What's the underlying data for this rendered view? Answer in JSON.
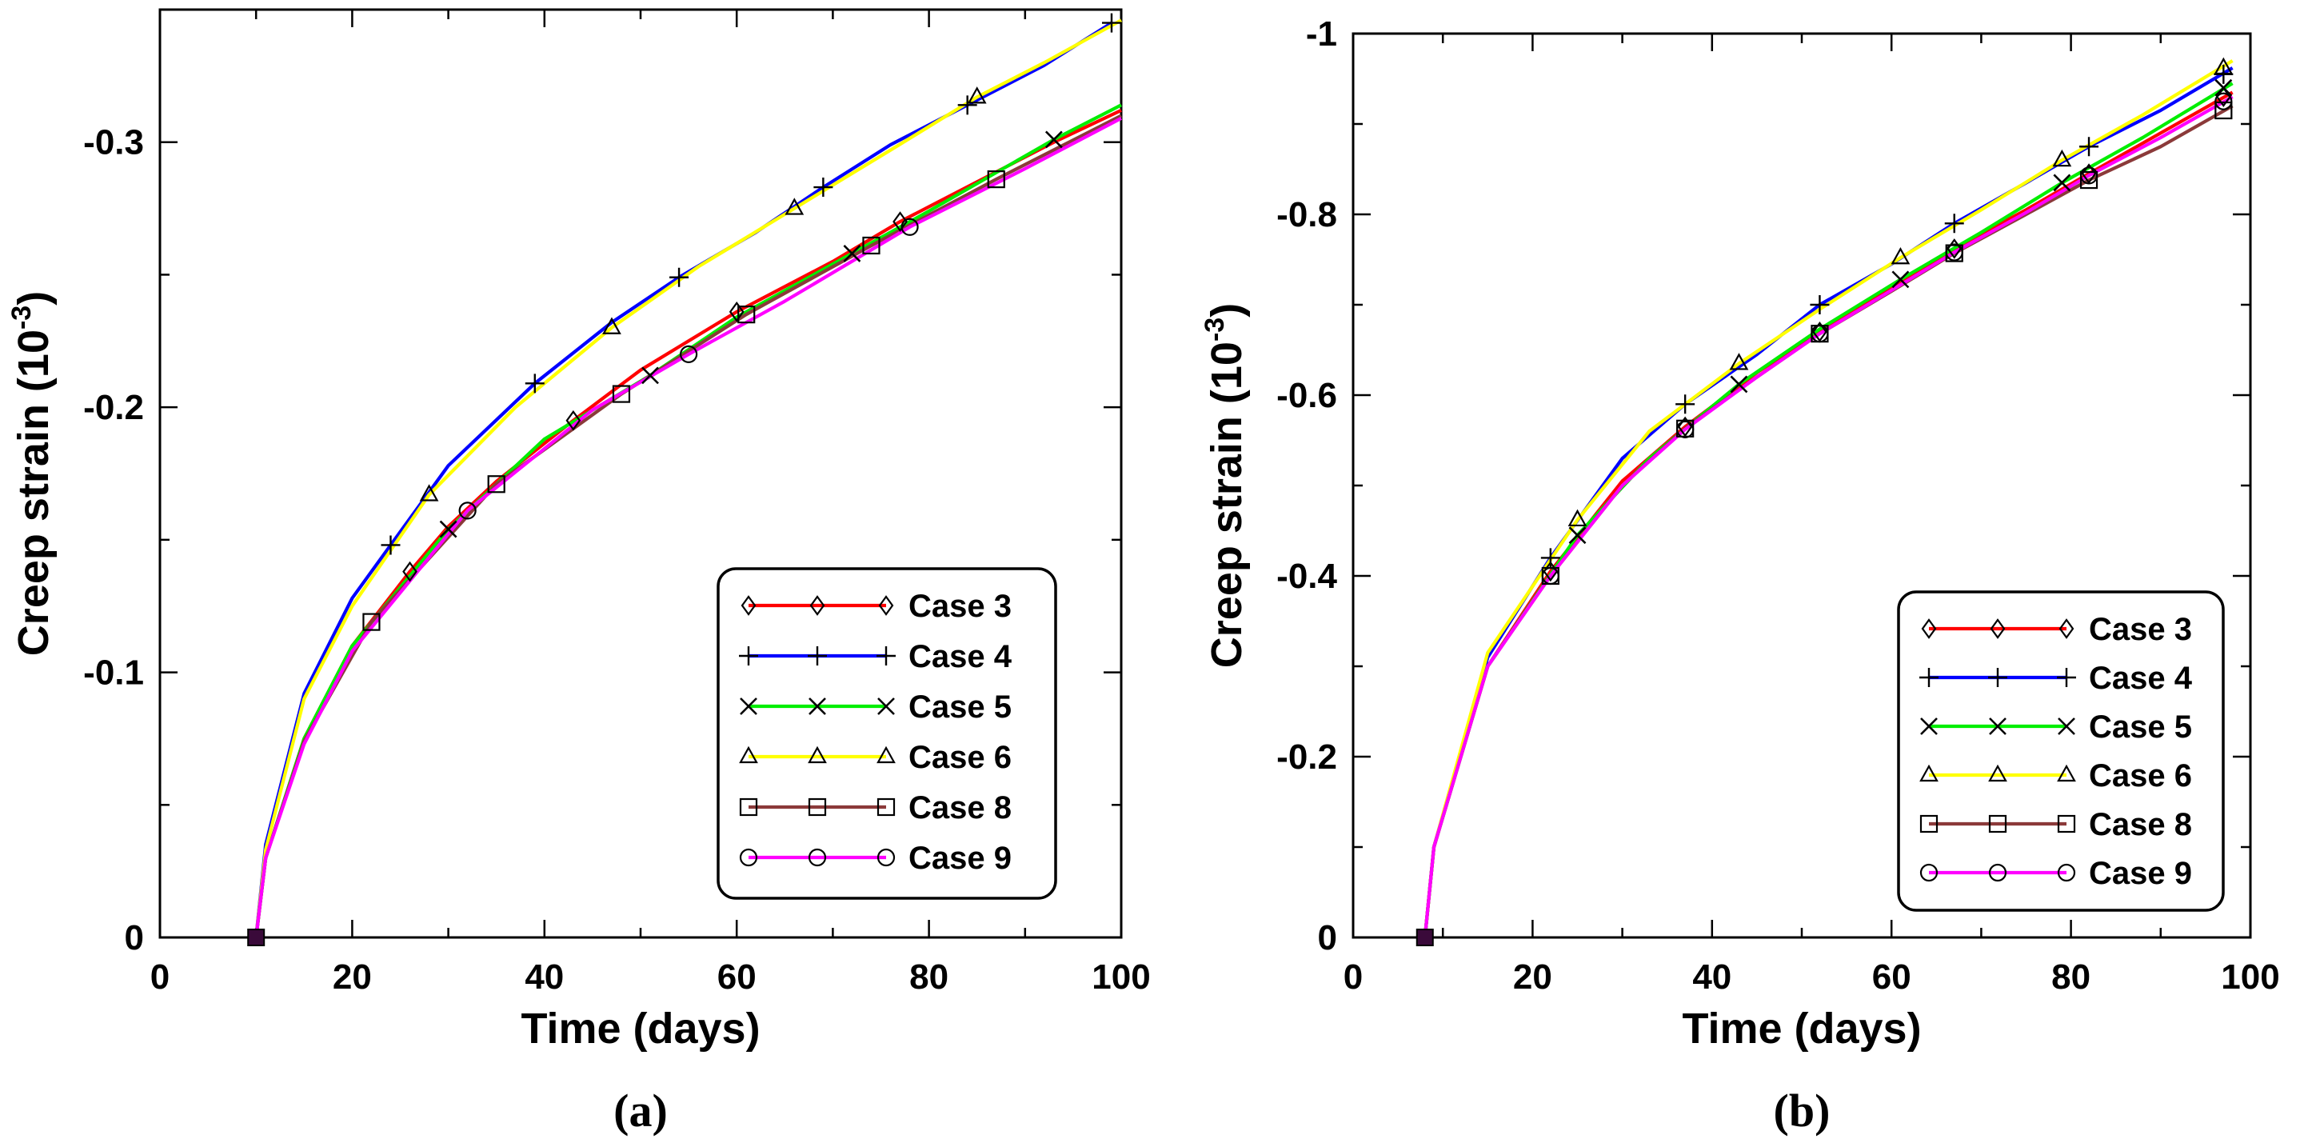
{
  "chart_data": [
    {
      "type": "line",
      "panel_label": "(a)",
      "xlabel": "Time (days)",
      "ylabel_base": "Creep strain (10",
      "ylabel_exp": "-3",
      "ylabel_close": ")",
      "xlim": [
        0,
        100
      ],
      "ylim": [
        0,
        -0.35
      ],
      "xticks": [
        0,
        20,
        40,
        60,
        80,
        100
      ],
      "xtick_labels": [
        "0",
        "20",
        "40",
        "60",
        "80",
        "100"
      ],
      "yticks": [
        0,
        -0.1,
        -0.2,
        -0.3
      ],
      "ytick_labels": [
        "0",
        "-0.1",
        "-0.2",
        "-0.3"
      ],
      "legend_position": "bottom-right",
      "series": [
        {
          "name": "Case 3",
          "color": "#ff0000",
          "marker": "diamond",
          "x": [
            10,
            11,
            15,
            20,
            26,
            30,
            35,
            43,
            50,
            60,
            70,
            77,
            85,
            93,
            100
          ],
          "y": [
            0,
            -0.03,
            -0.075,
            -0.11,
            -0.138,
            -0.155,
            -0.172,
            -0.195,
            -0.214,
            -0.236,
            -0.255,
            -0.27,
            -0.285,
            -0.3,
            -0.312
          ],
          "mx": [
            26,
            43,
            60,
            77
          ],
          "my": [
            -0.138,
            -0.195,
            -0.236,
            -0.27
          ]
        },
        {
          "name": "Case 4",
          "color": "#0000ff",
          "marker": "plus",
          "x": [
            10,
            11,
            15,
            20,
            24,
            30,
            39,
            47,
            54,
            62,
            69,
            76,
            84,
            92,
            99
          ],
          "y": [
            0,
            -0.035,
            -0.092,
            -0.128,
            -0.148,
            -0.178,
            -0.209,
            -0.232,
            -0.249,
            -0.266,
            -0.283,
            -0.299,
            -0.314,
            -0.329,
            -0.345
          ],
          "mx": [
            24,
            39,
            54,
            69,
            84,
            99
          ],
          "my": [
            -0.148,
            -0.209,
            -0.249,
            -0.283,
            -0.314,
            -0.345
          ]
        },
        {
          "name": "Case 5",
          "color": "#00ee00",
          "marker": "x",
          "x": [
            10,
            11,
            15,
            20,
            30,
            40,
            51,
            60,
            72,
            80,
            93,
            100
          ],
          "y": [
            0,
            -0.03,
            -0.075,
            -0.11,
            -0.154,
            -0.188,
            -0.212,
            -0.234,
            -0.258,
            -0.274,
            -0.301,
            -0.314
          ],
          "mx": [
            30,
            51,
            72,
            93
          ],
          "my": [
            -0.154,
            -0.212,
            -0.258,
            -0.301
          ]
        },
        {
          "name": "Case 6",
          "color": "#ffff00",
          "marker": "triangle",
          "x": [
            10,
            11,
            15,
            20,
            28,
            37,
            47,
            56,
            66,
            76,
            85,
            92,
            100
          ],
          "y": [
            0,
            -0.033,
            -0.09,
            -0.125,
            -0.167,
            -0.2,
            -0.23,
            -0.253,
            -0.275,
            -0.297,
            -0.317,
            -0.33,
            -0.346
          ],
          "mx": [
            28,
            47,
            66,
            85
          ],
          "my": [
            -0.167,
            -0.23,
            -0.275,
            -0.317
          ]
        },
        {
          "name": "Case 8",
          "color": "#8b3a3a",
          "marker": "square",
          "x": [
            10,
            11,
            15,
            22,
            35,
            48,
            61,
            74,
            87,
            100
          ],
          "y": [
            0,
            -0.03,
            -0.074,
            -0.119,
            -0.171,
            -0.205,
            -0.235,
            -0.261,
            -0.286,
            -0.31
          ],
          "mx": [
            22,
            35,
            48,
            61,
            74,
            87
          ],
          "my": [
            -0.119,
            -0.171,
            -0.205,
            -0.235,
            -0.261,
            -0.286
          ]
        },
        {
          "name": "Case 9",
          "color": "#ff00ff",
          "marker": "circle",
          "x": [
            10,
            11,
            15,
            20,
            32,
            45,
            55,
            65,
            78,
            90,
            100
          ],
          "y": [
            0,
            -0.03,
            -0.073,
            -0.108,
            -0.161,
            -0.199,
            -0.22,
            -0.24,
            -0.268,
            -0.29,
            -0.309
          ],
          "mx": [
            32,
            55,
            78
          ],
          "my": [
            -0.161,
            -0.22,
            -0.268
          ]
        }
      ]
    },
    {
      "type": "line",
      "panel_label": "(b)",
      "xlabel": "Time (days)",
      "ylabel_base": "Creep strain (10",
      "ylabel_exp": "-3",
      "ylabel_close": ")",
      "xlim": [
        0,
        100
      ],
      "ylim": [
        0,
        -1
      ],
      "xticks": [
        0,
        20,
        40,
        60,
        80,
        100
      ],
      "xtick_labels": [
        "0",
        "20",
        "40",
        "60",
        "80",
        "100"
      ],
      "yticks": [
        0,
        -0.2,
        -0.4,
        -0.6,
        -0.8,
        -1
      ],
      "ytick_labels": [
        "0",
        "-0.2",
        "-0.4",
        "-0.6",
        "-0.8",
        "-1"
      ],
      "legend_position": "bottom-right",
      "series": [
        {
          "name": "Case 3",
          "color": "#ff0000",
          "marker": "diamond",
          "x": [
            8,
            9,
            15,
            22,
            30,
            37,
            45,
            52,
            60,
            67,
            75,
            82,
            90,
            98
          ],
          "y": [
            0,
            -0.1,
            -0.3,
            -0.405,
            -0.505,
            -0.565,
            -0.625,
            -0.67,
            -0.72,
            -0.762,
            -0.805,
            -0.845,
            -0.89,
            -0.935
          ],
          "mx": [
            22,
            37,
            52,
            67,
            82,
            97
          ],
          "my": [
            -0.405,
            -0.565,
            -0.67,
            -0.762,
            -0.845,
            -0.93
          ]
        },
        {
          "name": "Case 4",
          "color": "#0000ff",
          "marker": "plus",
          "x": [
            8,
            9,
            15,
            22,
            30,
            37,
            45,
            52,
            60,
            67,
            75,
            82,
            90,
            98
          ],
          "y": [
            0,
            -0.1,
            -0.31,
            -0.42,
            -0.53,
            -0.59,
            -0.645,
            -0.7,
            -0.745,
            -0.79,
            -0.835,
            -0.875,
            -0.915,
            -0.962
          ],
          "mx": [
            22,
            37,
            52,
            67,
            82,
            97
          ],
          "my": [
            -0.42,
            -0.59,
            -0.7,
            -0.79,
            -0.875,
            -0.955
          ]
        },
        {
          "name": "Case 5",
          "color": "#00ee00",
          "marker": "x",
          "x": [
            8,
            9,
            15,
            25,
            33,
            43,
            52,
            61,
            70,
            79,
            88,
            98
          ],
          "y": [
            0,
            -0.1,
            -0.3,
            -0.445,
            -0.53,
            -0.612,
            -0.673,
            -0.728,
            -0.78,
            -0.835,
            -0.885,
            -0.945
          ],
          "mx": [
            25,
            43,
            61,
            79,
            97
          ],
          "my": [
            -0.445,
            -0.612,
            -0.728,
            -0.835,
            -0.94
          ]
        },
        {
          "name": "Case 6",
          "color": "#ffff00",
          "marker": "triangle",
          "x": [
            8,
            9,
            15,
            25,
            33,
            43,
            52,
            61,
            70,
            79,
            88,
            98
          ],
          "y": [
            0,
            -0.1,
            -0.315,
            -0.462,
            -0.56,
            -0.635,
            -0.695,
            -0.752,
            -0.805,
            -0.86,
            -0.91,
            -0.97
          ],
          "mx": [
            25,
            43,
            61,
            79,
            97
          ],
          "my": [
            -0.462,
            -0.635,
            -0.752,
            -0.86,
            -0.962
          ]
        },
        {
          "name": "Case 8",
          "color": "#8b3a3a",
          "marker": "square",
          "x": [
            8,
            9,
            15,
            22,
            30,
            37,
            45,
            52,
            60,
            67,
            75,
            82,
            90,
            98
          ],
          "y": [
            0,
            -0.1,
            -0.3,
            -0.4,
            -0.5,
            -0.563,
            -0.62,
            -0.668,
            -0.715,
            -0.757,
            -0.8,
            -0.838,
            -0.875,
            -0.92
          ],
          "mx": [
            22,
            37,
            52,
            67,
            82,
            97
          ],
          "my": [
            -0.4,
            -0.563,
            -0.668,
            -0.757,
            -0.838,
            -0.915
          ]
        },
        {
          "name": "Case 9",
          "color": "#ff00ff",
          "marker": "circle",
          "x": [
            8,
            9,
            15,
            22,
            30,
            37,
            45,
            52,
            60,
            67,
            75,
            82,
            90,
            98
          ],
          "y": [
            0,
            -0.1,
            -0.3,
            -0.4,
            -0.5,
            -0.562,
            -0.62,
            -0.668,
            -0.716,
            -0.758,
            -0.802,
            -0.843,
            -0.885,
            -0.93
          ],
          "mx": [
            22,
            37,
            52,
            67,
            82,
            97
          ],
          "my": [
            -0.4,
            -0.562,
            -0.668,
            -0.758,
            -0.843,
            -0.925
          ]
        }
      ]
    }
  ]
}
